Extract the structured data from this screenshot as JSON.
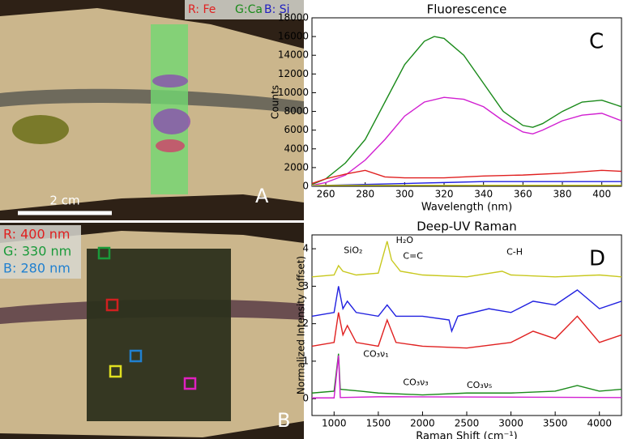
{
  "chart_data": [
    {
      "type": "line",
      "title": "Fluorescence",
      "panel": "C",
      "xlabel": "Wavelength (nm)",
      "ylabel": "Counts",
      "xlim": [
        253,
        410
      ],
      "xticks": [
        260,
        280,
        300,
        320,
        340,
        360,
        380,
        400
      ],
      "ylim": [
        0,
        18000
      ],
      "yticks": [
        0,
        2000,
        4000,
        6000,
        8000,
        10000,
        12000,
        14000,
        16000,
        18000
      ],
      "series": [
        {
          "color": "#1a8a1a",
          "x": [
            253,
            260,
            270,
            280,
            290,
            300,
            310,
            315,
            320,
            330,
            340,
            350,
            360,
            365,
            370,
            380,
            390,
            400,
            410
          ],
          "values": [
            200,
            800,
            2500,
            5000,
            9000,
            13000,
            15500,
            16000,
            15800,
            14000,
            11000,
            8000,
            6500,
            6300,
            6700,
            8000,
            9000,
            9200,
            8500
          ]
        },
        {
          "color": "#d11fd1",
          "x": [
            253,
            260,
            270,
            280,
            290,
            300,
            310,
            320,
            330,
            340,
            350,
            360,
            365,
            370,
            380,
            390,
            400,
            410
          ],
          "values": [
            100,
            400,
            1200,
            2800,
            5000,
            7500,
            9000,
            9500,
            9300,
            8500,
            7000,
            5800,
            5600,
            6000,
            7000,
            7600,
            7800,
            7000
          ]
        },
        {
          "color": "#e02020",
          "x": [
            253,
            260,
            270,
            280,
            290,
            300,
            320,
            340,
            360,
            380,
            400,
            410
          ],
          "values": [
            300,
            800,
            1300,
            1700,
            1000,
            900,
            900,
            1100,
            1200,
            1400,
            1700,
            1600
          ]
        },
        {
          "color": "#2020e0",
          "x": [
            253,
            260,
            280,
            300,
            320,
            340,
            360,
            380,
            400,
            410
          ],
          "values": [
            50,
            100,
            200,
            300,
            400,
            500,
            500,
            500,
            500,
            500
          ]
        },
        {
          "color": "#c8c81e",
          "x": [
            253,
            300,
            350,
            410
          ],
          "values": [
            100,
            100,
            100,
            100
          ]
        }
      ]
    },
    {
      "type": "line",
      "title": "Deep-UV Raman",
      "panel": "D",
      "xlabel": "Raman Shift (cm⁻¹)",
      "ylabel": "Normalized Intensity (offset)",
      "xlim": [
        750,
        4250
      ],
      "xticks": [
        1000,
        1500,
        2000,
        2500,
        3000,
        3500,
        4000
      ],
      "ylim": [
        -0.45,
        4.37
      ],
      "yticks": [
        0,
        1,
        2,
        3,
        4
      ],
      "annotations": [
        "SiO₂",
        "H₂O",
        "C=C",
        "C-H",
        "CO₃ν₁",
        "CO₃ν₃",
        "CO₃ν₅"
      ],
      "series": [
        {
          "color": "#c8c81e",
          "x": [
            750,
            1000,
            1050,
            1100,
            1250,
            1500,
            1600,
            1650,
            1750,
            2000,
            2500,
            2900,
            3000,
            3500,
            4000,
            4250
          ],
          "values": [
            3.25,
            3.3,
            3.55,
            3.4,
            3.3,
            3.35,
            4.2,
            3.7,
            3.4,
            3.3,
            3.25,
            3.4,
            3.3,
            3.25,
            3.3,
            3.25
          ]
        },
        {
          "color": "#2020e0",
          "x": [
            750,
            1000,
            1050,
            1100,
            1150,
            1250,
            1500,
            1600,
            1700,
            2000,
            2300,
            2330,
            2400,
            2750,
            3000,
            3250,
            3500,
            3750,
            4000,
            4250
          ],
          "values": [
            2.2,
            2.3,
            3.0,
            2.4,
            2.6,
            2.3,
            2.2,
            2.5,
            2.2,
            2.2,
            2.1,
            1.8,
            2.2,
            2.4,
            2.3,
            2.6,
            2.5,
            2.9,
            2.4,
            2.6
          ]
        },
        {
          "color": "#e02020",
          "x": [
            750,
            1000,
            1050,
            1100,
            1150,
            1250,
            1500,
            1600,
            1700,
            2000,
            2500,
            3000,
            3250,
            3500,
            3750,
            4000,
            4250
          ],
          "values": [
            1.4,
            1.5,
            2.3,
            1.7,
            1.95,
            1.5,
            1.4,
            2.1,
            1.5,
            1.4,
            1.35,
            1.5,
            1.8,
            1.6,
            2.2,
            1.5,
            1.7
          ]
        },
        {
          "color": "#1a8a1a",
          "x": [
            750,
            1000,
            1050,
            1070,
            1300,
            1500,
            2000,
            2500,
            3000,
            3500,
            3750,
            4000,
            4250
          ],
          "values": [
            0.15,
            0.2,
            1.2,
            0.25,
            0.2,
            0.15,
            0.1,
            0.15,
            0.15,
            0.2,
            0.35,
            0.2,
            0.25
          ]
        },
        {
          "color": "#d11fd1",
          "x": [
            750,
            1000,
            1050,
            1070,
            1500,
            1750,
            4250
          ],
          "values": [
            0.02,
            0.02,
            1.15,
            0.03,
            0.05,
            0.05,
            0.03
          ]
        }
      ]
    }
  ],
  "images": [
    {
      "label": "A",
      "legend": [
        "R: Fe",
        "G:Ca",
        "B: Si"
      ],
      "scale_bar": "2 cm"
    },
    {
      "label": "B",
      "legend": [
        "R: 400 nm",
        "G: 330 nm",
        "B: 280 nm"
      ]
    }
  ]
}
